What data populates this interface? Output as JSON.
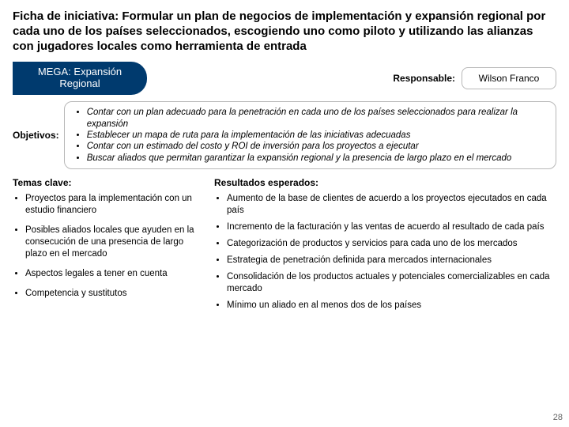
{
  "title": "Ficha de iniciativa: Formular un plan de negocios de implementación y expansión regional por cada uno de los países seleccionados, escogiendo uno como piloto y utilizando las alianzas con jugadores locales como herramienta de entrada",
  "mega_tab": {
    "line1": "MEGA: Expansión",
    "line2": "Regional"
  },
  "responsable": {
    "label": "Responsable:",
    "value": "Wilson Franco"
  },
  "objetivos": {
    "label": "Objetivos:",
    "items": [
      "Contar con un plan adecuado para la penetración en cada uno de los países seleccionados para realizar la expansión",
      "Establecer un mapa de ruta para la implementación de las iniciativas adecuadas",
      "Contar con un estimado del costo y ROI de inversión para los proyectos a ejecutar",
      "Buscar aliados que permitan garantizar la expansión regional y la presencia de largo plazo en el mercado"
    ]
  },
  "temas": {
    "header": "Temas clave:",
    "items": [
      "Proyectos para la implementación con un estudio financiero",
      "Posibles aliados locales que ayuden en la consecución de una presencia de largo plazo en el mercado",
      "Aspectos legales a tener en cuenta",
      "Competencia y sustitutos"
    ]
  },
  "resultados": {
    "header": "Resultados esperados:",
    "items": [
      "Aumento de la base de clientes de acuerdo a los proyectos ejecutados en cada país",
      "Incremento de la facturación y las ventas de acuerdo al resultado de cada país",
      "Categorización de productos y servicios para cada uno de los mercados",
      "Estrategia de penetración definida para mercados internacionales",
      "Consolidación de los productos actuales y potenciales comercializables en cada mercado",
      "Mínimo un aliado en al menos dos de los países"
    ]
  },
  "page_number": "28",
  "colors": {
    "mega_bg": "#003a6e",
    "border": "#b8b8b8",
    "pagenum": "#666666"
  }
}
